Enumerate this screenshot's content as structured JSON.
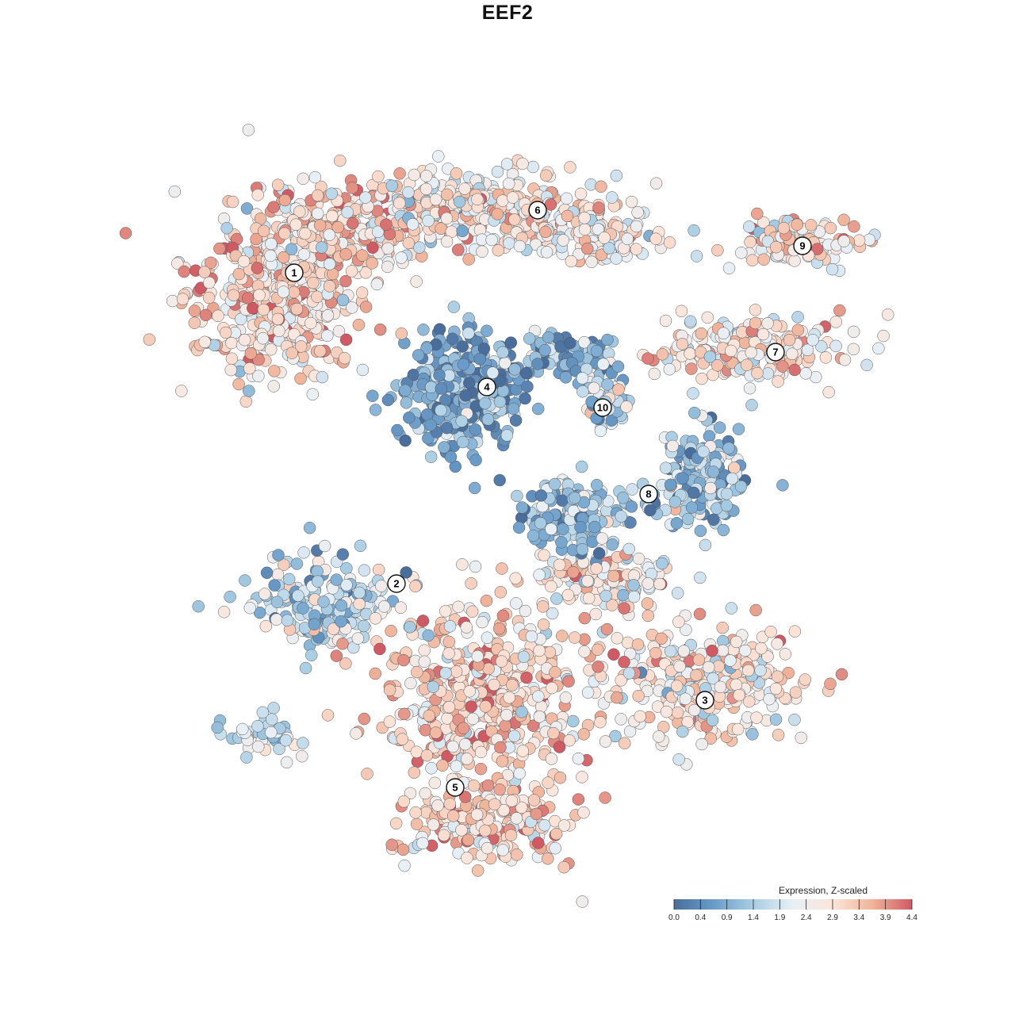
{
  "chart_data": {
    "type": "scatter",
    "title": "EEF2",
    "xlabel": "",
    "ylabel": "",
    "grid": false,
    "colorbar": {
      "title": "Expression, Z-scaled",
      "ticks": [
        "0.0",
        "0.4",
        "0.9",
        "1.4",
        "1.9",
        "2.4",
        "2.9",
        "3.4",
        "3.9",
        "4.4"
      ],
      "range": [
        0.0,
        4.4
      ],
      "colors": [
        "#4a6e9c",
        "#6a9cc9",
        "#a9cde3",
        "#e8f0f6",
        "#fbe5da",
        "#f0b49a",
        "#cf5a63"
      ],
      "placement": "bottom-right"
    },
    "clusters": [
      {
        "label": "1",
        "mean_expression": 3.0
      },
      {
        "label": "2",
        "mean_expression": 1.7
      },
      {
        "label": "3",
        "mean_expression": 2.7
      },
      {
        "label": "4",
        "mean_expression": 0.9
      },
      {
        "label": "5",
        "mean_expression": 3.1
      },
      {
        "label": "6",
        "mean_expression": 2.7
      },
      {
        "label": "7",
        "mean_expression": 2.8
      },
      {
        "label": "8",
        "mean_expression": 1.3
      },
      {
        "label": "9",
        "mean_expression": 2.9
      },
      {
        "label": "10",
        "mean_expression": 1.6
      }
    ]
  }
}
